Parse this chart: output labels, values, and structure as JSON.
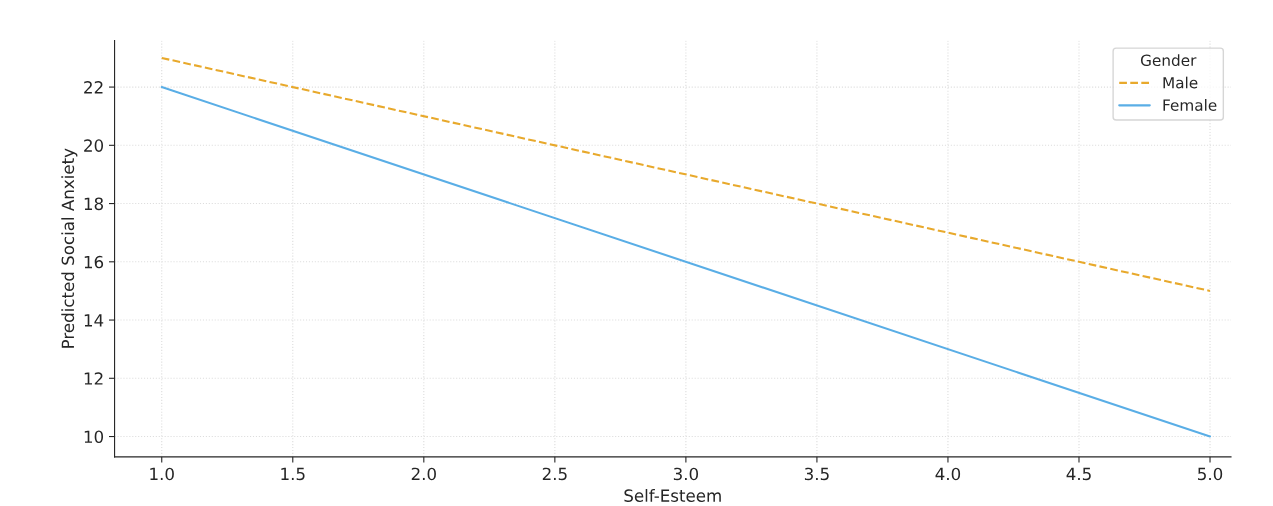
{
  "chart_data": {
    "type": "line",
    "xlabel": "Self-Esteem",
    "ylabel": "Predicted Social Anxiety",
    "legend_title": "Gender",
    "x": [
      1,
      5
    ],
    "series": [
      {
        "name": "Male",
        "color": "#e8a92c",
        "values": [
          23,
          15
        ],
        "line_style": "dashed"
      },
      {
        "name": "Female",
        "color": "#5aaee6",
        "values": [
          22,
          10
        ],
        "line_style": "solid"
      }
    ],
    "xlim": [
      0.82,
      5.08
    ],
    "ylim": [
      9.3,
      23.6
    ],
    "xticks": [
      {
        "value": 1,
        "label": "1.0"
      },
      {
        "value": 1.5,
        "label": "1.5"
      },
      {
        "value": 2,
        "label": "2.0"
      },
      {
        "value": 2.5,
        "label": "2.5"
      },
      {
        "value": 3,
        "label": "3.0"
      },
      {
        "value": 3.5,
        "label": "3.5"
      },
      {
        "value": 4,
        "label": "4.0"
      },
      {
        "value": 4.5,
        "label": "4.5"
      },
      {
        "value": 5,
        "label": "5.0"
      }
    ],
    "yticks": [
      10,
      12,
      14,
      16,
      18,
      20,
      22
    ],
    "grid": true,
    "legend": "top right",
    "marker": "none"
  }
}
